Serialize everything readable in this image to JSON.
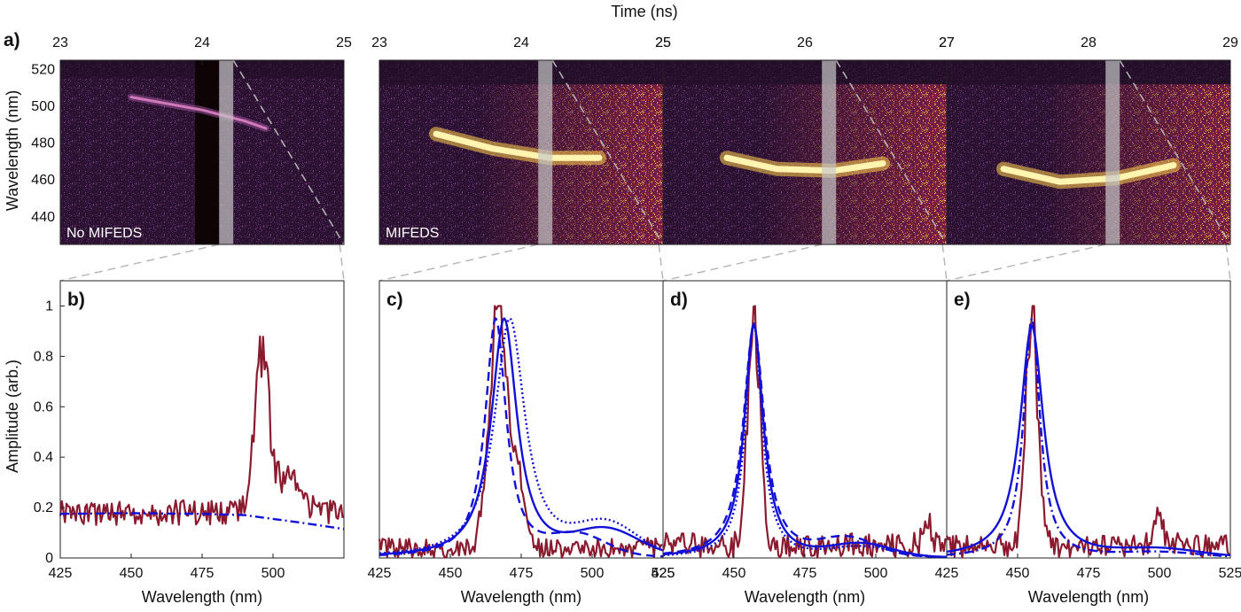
{
  "figure": {
    "top_axis_label": "Time (ns)",
    "y_label_top": "Wavelength (nm)",
    "y_label_bottom": "Amplitude (arb.)",
    "x_label_bottom": "Wavelength (nm)",
    "colors": {
      "data": "#8b1a2e",
      "fit": "#1010d8",
      "heatmap_bg": "#2b1230",
      "heatmap_hot": "#fff4b0",
      "dashed_guide": "#b8b8b8"
    }
  },
  "chart_data": [
    {
      "type": "heatmap",
      "panel": "a)",
      "annotation": "No MIFEDS",
      "xlabel": "Time (ns)",
      "ylabel": "Wavelength (nm)",
      "xlim": [
        23,
        25
      ],
      "ylim": [
        425,
        525
      ],
      "xticks": [
        "23",
        "24",
        "25"
      ],
      "yticks": [
        440,
        460,
        480,
        500,
        520
      ],
      "blank_region_ns": [
        23.95,
        24.12
      ],
      "window_ns": [
        24.12,
        24.22
      ],
      "trace": [
        {
          "t": 23.5,
          "nm": 505
        },
        {
          "t": 24.0,
          "nm": 498
        },
        {
          "t": 24.3,
          "nm": 492
        },
        {
          "t": 24.45,
          "nm": 488
        }
      ],
      "bright_nm_upper": 515
    },
    {
      "type": "heatmap",
      "panel": "a)",
      "annotation": "MIFEDS",
      "xlabel": "Time (ns)",
      "xlim": [
        23,
        25
      ],
      "ylim": [
        425,
        525
      ],
      "xticks": [
        "23",
        "24",
        "25"
      ],
      "window_ns": [
        24.12,
        24.22
      ],
      "trace": [
        {
          "t": 23.4,
          "nm": 485
        },
        {
          "t": 23.8,
          "nm": 477
        },
        {
          "t": 24.2,
          "nm": 472
        },
        {
          "t": 24.55,
          "nm": 472
        }
      ],
      "bright_nm_upper": 512
    },
    {
      "type": "heatmap",
      "panel": "a)",
      "xlabel": "Time (ns)",
      "xlim": [
        25,
        27
      ],
      "ylim": [
        425,
        525
      ],
      "xticks": [
        "25",
        "26",
        "27"
      ],
      "window_ns": [
        26.12,
        26.22
      ],
      "trace": [
        {
          "t": 25.45,
          "nm": 472
        },
        {
          "t": 25.8,
          "nm": 466
        },
        {
          "t": 26.2,
          "nm": 465
        },
        {
          "t": 26.55,
          "nm": 469
        }
      ],
      "bright_nm_upper": 512
    },
    {
      "type": "heatmap",
      "panel": "a)",
      "xlabel": "Time (ns)",
      "xlim": [
        27,
        29
      ],
      "ylim": [
        425,
        525
      ],
      "xticks": [
        "27",
        "28",
        "29"
      ],
      "window_ns": [
        28.12,
        28.22
      ],
      "trace": [
        {
          "t": 27.4,
          "nm": 466
        },
        {
          "t": 27.8,
          "nm": 459
        },
        {
          "t": 28.2,
          "nm": 461
        },
        {
          "t": 28.6,
          "nm": 468
        }
      ],
      "bright_nm_upper": 512
    },
    {
      "type": "line",
      "panel": "b)",
      "xlabel": "Wavelength (nm)",
      "ylabel": "Amplitude (arb.)",
      "xlim": [
        425,
        525
      ],
      "ylim": [
        0,
        1.1
      ],
      "xticks": [
        425,
        450,
        475,
        500
      ],
      "yticks": [
        "0",
        "0.2",
        "0.4",
        "0.6",
        "0.8",
        "1"
      ],
      "grid": false,
      "series": [
        {
          "style": "data",
          "baseline": 0.18,
          "noise": 0.05,
          "peaks": [
            {
              "c": 496,
              "a": 0.62,
              "w": 3.5
            },
            {
              "c": 505,
              "a": 0.15,
              "w": 6
            }
          ]
        },
        {
          "style": "dashdot",
          "x": [
            425,
            450,
            475,
            490,
            500,
            510,
            525
          ],
          "y": [
            0.175,
            0.178,
            0.175,
            0.17,
            0.155,
            0.14,
            0.115
          ]
        }
      ]
    },
    {
      "type": "line",
      "panel": "c)",
      "xlabel": "Wavelength (nm)",
      "xlim": [
        425,
        525
      ],
      "ylim": [
        0,
        1.1
      ],
      "xticks": [
        425,
        450,
        475,
        500,
        525
      ],
      "series": [
        {
          "style": "data",
          "baseline": 0.04,
          "noise": 0.04,
          "peaks": [
            {
              "c": 467,
              "a": 0.93,
              "w": 4.5
            },
            {
              "c": 474,
              "a": 0.25,
              "w": 3
            }
          ]
        },
        {
          "style": "solid",
          "center": 469,
          "width": 5.5,
          "amp": 0.95,
          "tail": 0.1,
          "tail_c": 505,
          "tail_w": 16
        },
        {
          "style": "dashed",
          "center": 466,
          "width": 4.5,
          "amp": 0.95,
          "tail": 0.08,
          "tail_c": 495,
          "tail_w": 14
        },
        {
          "style": "dotted",
          "center": 471,
          "width": 6.5,
          "amp": 0.95,
          "tail": 0.12,
          "tail_c": 505,
          "tail_w": 15
        }
      ]
    },
    {
      "type": "line",
      "panel": "d)",
      "xlabel": "Wavelength (nm)",
      "xlim": [
        425,
        525
      ],
      "ylim": [
        0,
        1.1
      ],
      "xticks": [
        425,
        450,
        475,
        500
      ],
      "series": [
        {
          "style": "data",
          "baseline": 0.05,
          "noise": 0.05,
          "peaks": [
            {
              "c": 457,
              "a": 0.95,
              "w": 3
            },
            {
              "c": 518,
              "a": 0.1,
              "w": 2
            }
          ]
        },
        {
          "style": "solid",
          "center": 457,
          "width": 4,
          "amp": 0.93,
          "tail": 0.05,
          "tail_c": 495,
          "tail_w": 15
        },
        {
          "style": "dashed",
          "center": 457,
          "width": 4.5,
          "amp": 0.92,
          "tail": 0.07,
          "tail_c": 490,
          "tail_w": 14
        },
        {
          "style": "dotted",
          "center": 457,
          "width": 3.5,
          "amp": 0.93,
          "tail": 0.04,
          "tail_c": 495,
          "tail_w": 15
        }
      ]
    },
    {
      "type": "line",
      "panel": "e)",
      "xlabel": "Wavelength (nm)",
      "xlim": [
        425,
        525
      ],
      "ylim": [
        0,
        1.1
      ],
      "xticks": [
        425,
        450,
        475,
        500,
        525
      ],
      "series": [
        {
          "style": "data",
          "baseline": 0.05,
          "noise": 0.05,
          "peaks": [
            {
              "c": 455,
              "a": 0.95,
              "w": 3
            },
            {
              "c": 500,
              "a": 0.12,
              "w": 2
            }
          ]
        },
        {
          "style": "solid",
          "center": 455,
          "width": 5,
          "amp": 0.92,
          "tail": 0.03,
          "tail_c": 500,
          "tail_w": 20
        },
        {
          "style": "dashdot",
          "center": 455,
          "width": 3.5,
          "amp": 0.95,
          "tail": 0.02,
          "tail_c": 500,
          "tail_w": 20
        }
      ]
    }
  ]
}
